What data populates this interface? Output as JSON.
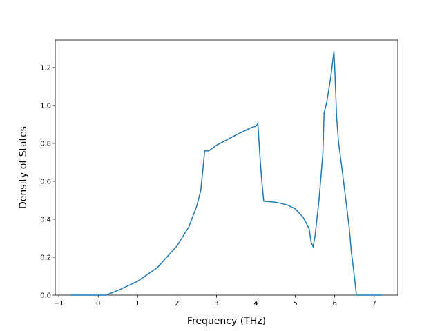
{
  "chart_data": {
    "type": "line",
    "xlabel": "Frequency (THz)",
    "ylabel": "Density of States",
    "color": "#1f77b4",
    "x": [
      -0.7,
      0.0,
      0.2,
      0.5,
      1.0,
      1.5,
      2.0,
      2.3,
      2.5,
      2.6,
      2.65,
      2.7,
      2.8,
      3.0,
      3.5,
      3.9,
      4.0,
      4.05,
      4.1,
      4.15,
      4.2,
      4.5,
      4.8,
      5.0,
      5.2,
      5.35,
      5.4,
      5.45,
      5.5,
      5.6,
      5.7,
      5.73,
      5.8,
      5.9,
      5.98,
      6.0,
      6.05,
      6.1,
      6.2,
      6.3,
      6.37,
      6.42,
      6.48,
      6.55,
      7.2
    ],
    "values": [
      0,
      0,
      0,
      0.025,
      0.073,
      0.145,
      0.26,
      0.36,
      0.47,
      0.55,
      0.65,
      0.76,
      0.76,
      0.79,
      0.845,
      0.885,
      0.89,
      0.905,
      0.74,
      0.6,
      0.495,
      0.49,
      0.475,
      0.455,
      0.41,
      0.35,
      0.28,
      0.255,
      0.31,
      0.5,
      0.75,
      0.96,
      1.02,
      1.15,
      1.285,
      1.2,
      0.93,
      0.8,
      0.64,
      0.47,
      0.35,
      0.23,
      0.13,
      0.0,
      0
    ],
    "xlim": [
      -1.09,
      7.6
    ],
    "xticks": [
      {
        "value": -1,
        "label": "−1"
      },
      0,
      1,
      2,
      3,
      4,
      5,
      6,
      7
    ],
    "ylim": [
      0,
      1.345
    ],
    "yticks": [
      {
        "value": 0,
        "label": "0.0"
      },
      0.2,
      0.4,
      0.6,
      0.8,
      {
        "value": 1,
        "label": "1.0"
      },
      1.2
    ]
  }
}
